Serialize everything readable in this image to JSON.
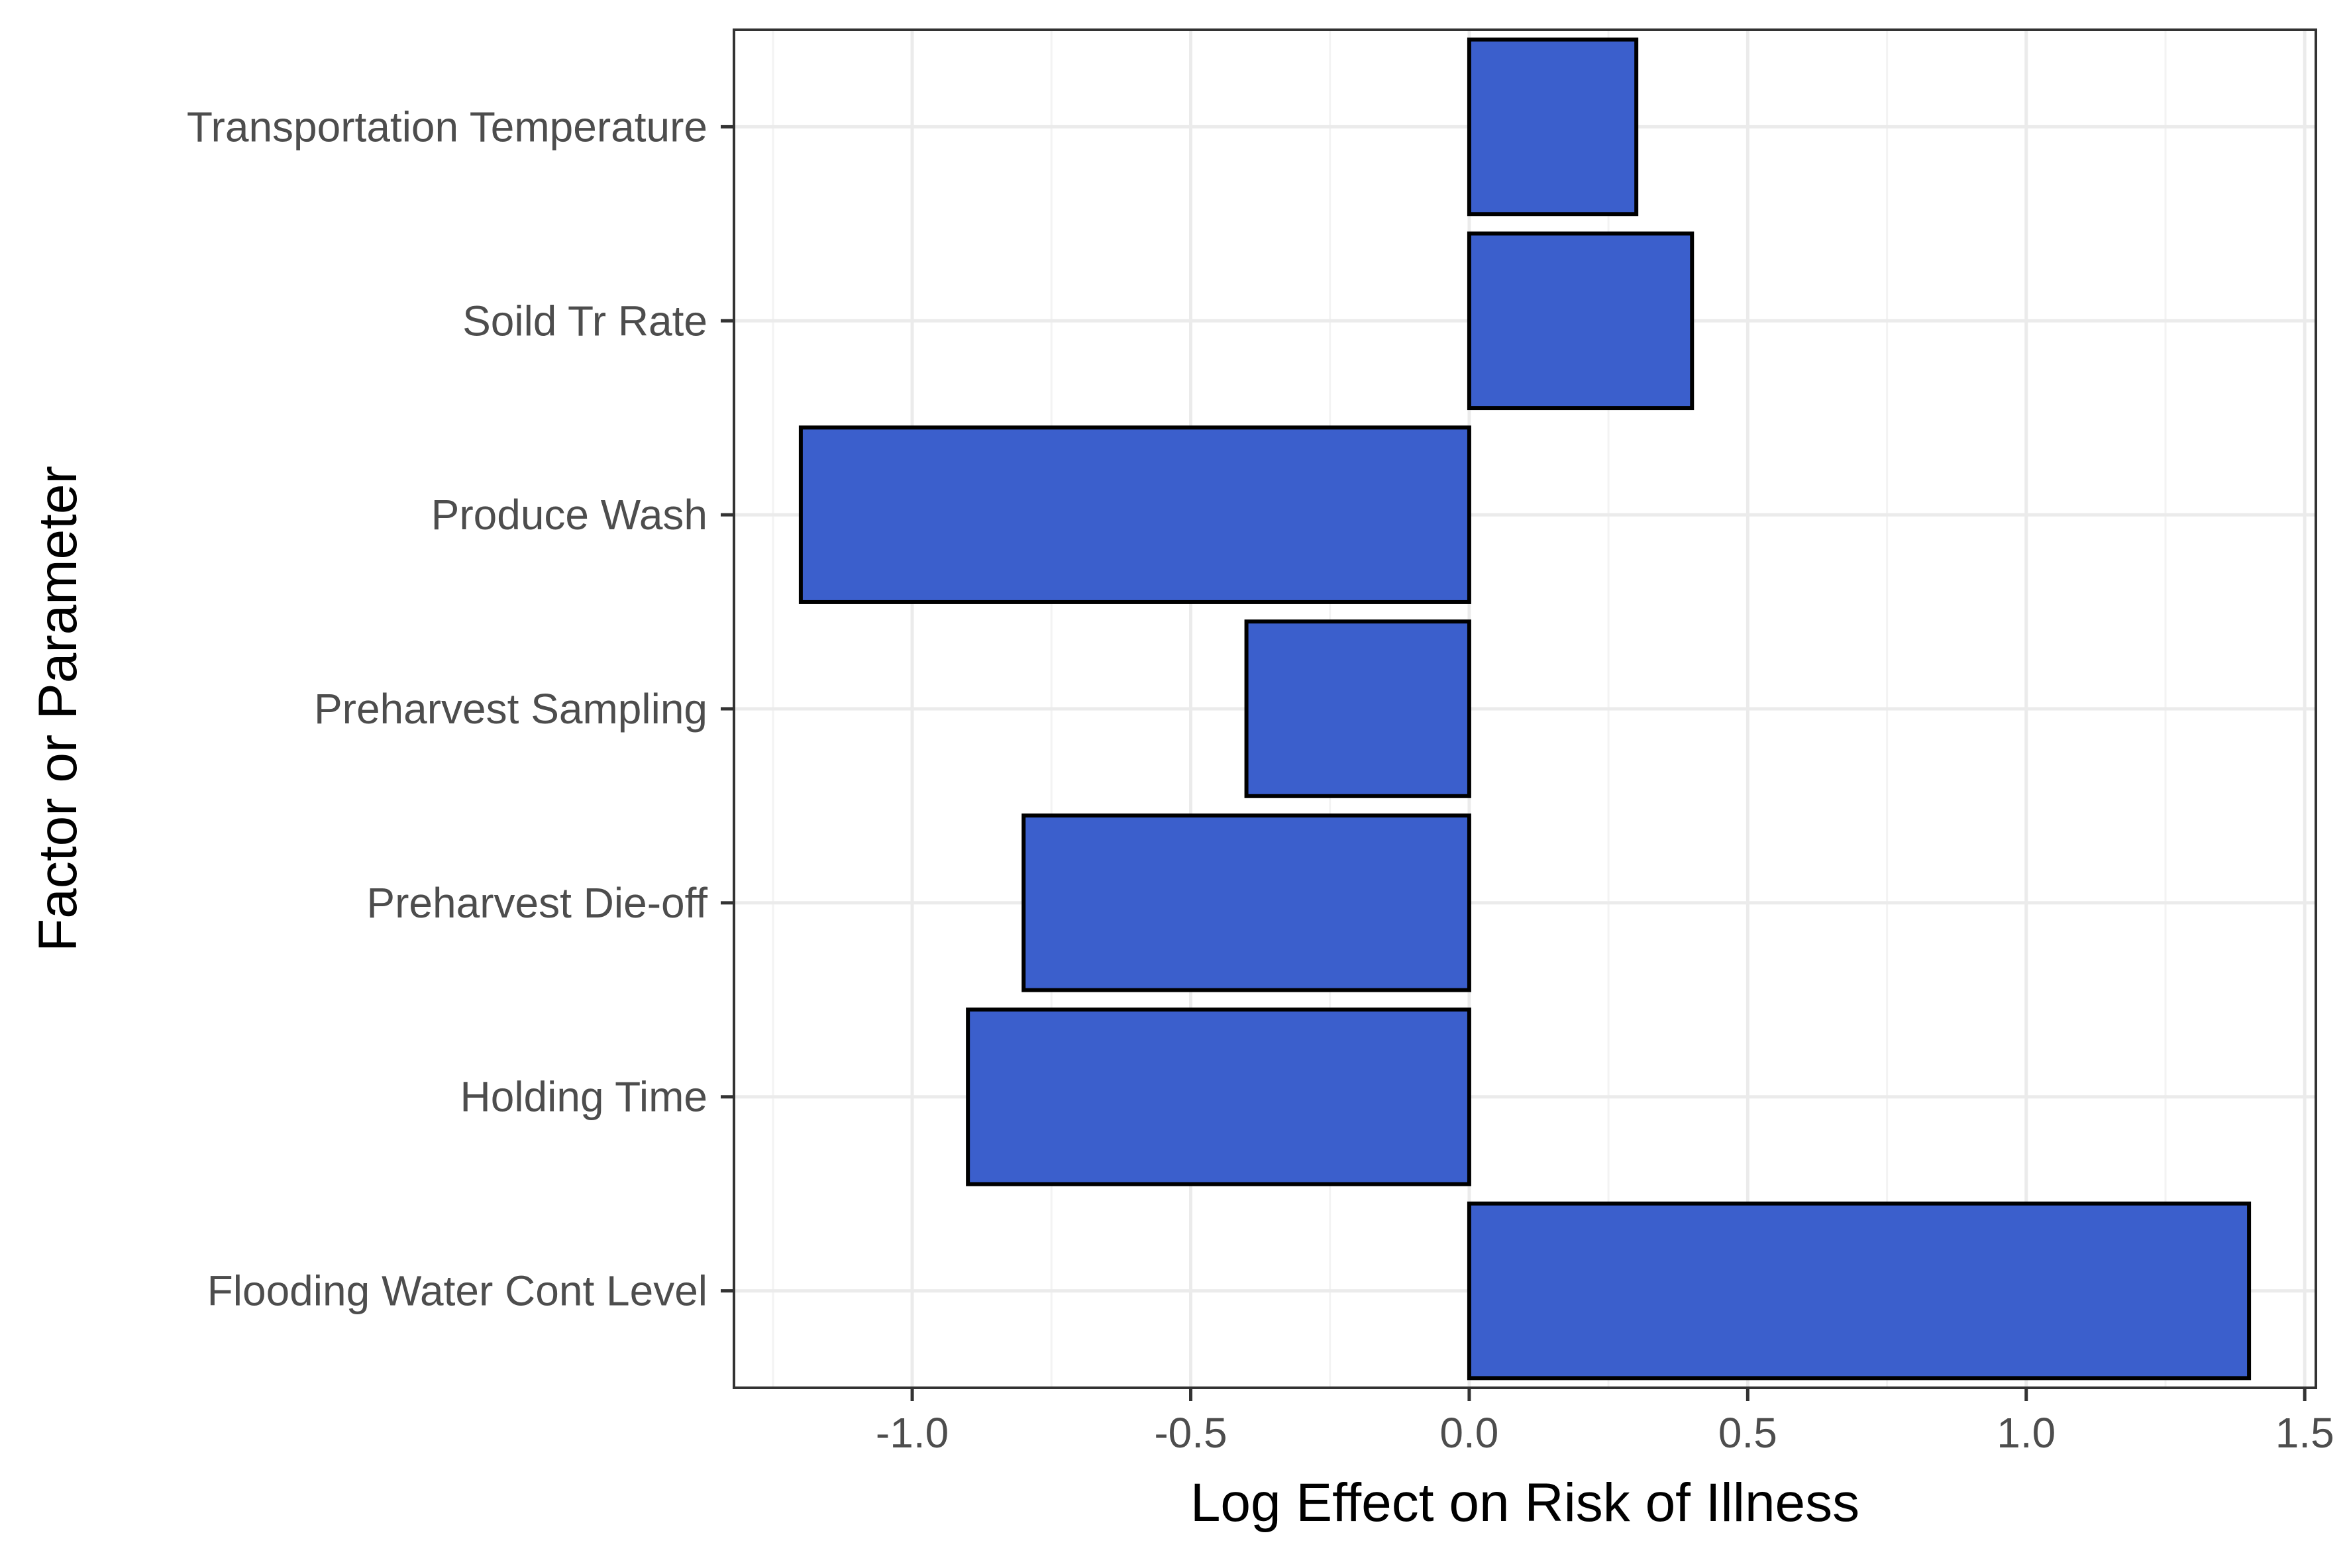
{
  "chart_data": {
    "type": "bar",
    "orientation": "horizontal",
    "title": "",
    "xlabel": "Log Effect on Risk of Illness",
    "ylabel": "Factor or Parameter",
    "categories": [
      "Transportation Temperature",
      "Soild Tr Rate",
      "Produce Wash",
      "Preharvest Sampling",
      "Preharvest Die-off",
      "Holding Time",
      "Flooding Water Cont Level"
    ],
    "values": [
      0.3,
      0.4,
      -1.2,
      -0.4,
      -0.8,
      -0.9,
      1.4
    ],
    "xlim": [
      -1.32,
      1.52
    ],
    "xticks": [
      -1.0,
      -0.5,
      0.0,
      0.5,
      1.0,
      1.5
    ],
    "xtick_labels": [
      "-1.0",
      "-0.5",
      "0.0",
      "0.5",
      "1.0",
      "1.5"
    ],
    "grid": true,
    "legend": "none",
    "colors": {
      "bar_fill": "#3b5fcc",
      "bar_stroke": "#000000",
      "grid_major": "#ebebeb",
      "grid_minor": "#f3f3f3",
      "panel_border": "#333333",
      "tick_text": "#4d4d4d"
    }
  }
}
